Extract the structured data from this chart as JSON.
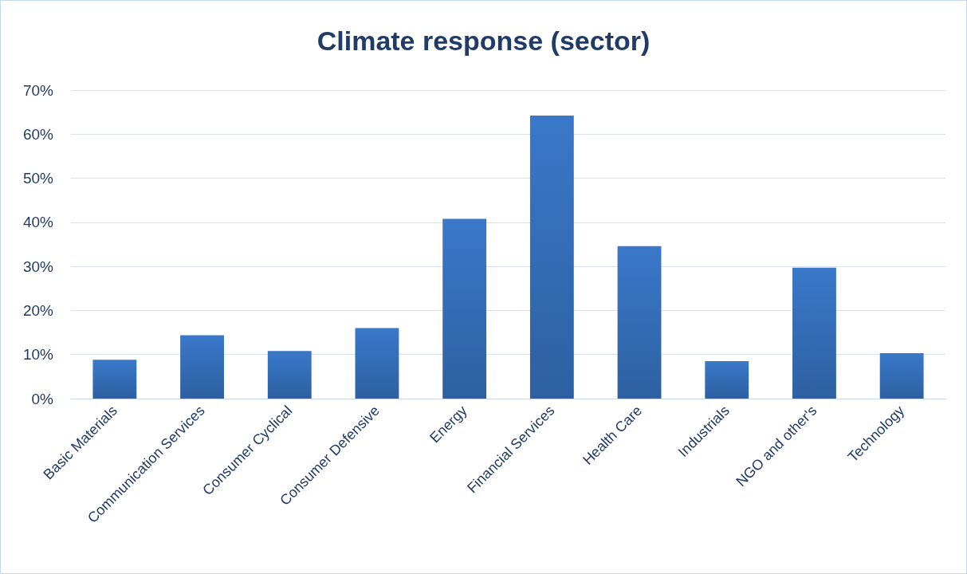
{
  "chart_data": {
    "type": "bar",
    "title": "Climate response (sector)",
    "categories": [
      "Basic Materials",
      "Communication Services",
      "Consumer Cyclical",
      "Consumer Defensive",
      "Energy",
      "Financial Services",
      "Health Care",
      "Industrials",
      "NGO and other's",
      "Technology"
    ],
    "values": [
      8.8,
      14.4,
      10.8,
      16.0,
      40.8,
      64.2,
      34.6,
      8.5,
      29.7,
      10.3
    ],
    "color": "#3a78c9",
    "ylim": [
      0,
      70
    ],
    "yticks": [
      {
        "value": 0,
        "label": "0%"
      },
      {
        "value": 10,
        "label": "10%"
      },
      {
        "value": 20,
        "label": "20%"
      },
      {
        "value": 30,
        "label": "30%"
      },
      {
        "value": 40,
        "label": "40%"
      },
      {
        "value": 50,
        "label": "50%"
      },
      {
        "value": 60,
        "label": "60%"
      },
      {
        "value": 70,
        "label": "70%"
      }
    ],
    "grid": "y"
  }
}
